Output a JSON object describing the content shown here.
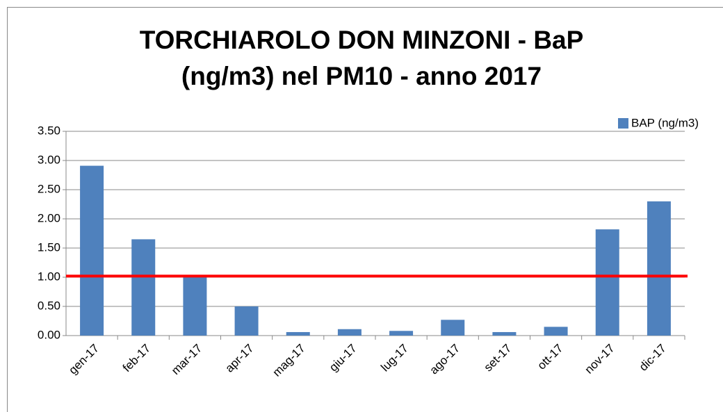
{
  "chart_data": {
    "type": "bar",
    "title": [
      "TORCHIAROLO DON MINZONI - BaP",
      "(ng/m3) nel  PM10 - anno 2017"
    ],
    "categories": [
      "gen-17",
      "feb-17",
      "mar-17",
      "apr-17",
      "mag-17",
      "giu-17",
      "lug-17",
      "ago-17",
      "set-17",
      "ott-17",
      "nov-17",
      "dic-17"
    ],
    "series": [
      {
        "name": "BAP (ng/m3)",
        "color": "#4f81bd",
        "values": [
          2.91,
          1.65,
          1.0,
          0.5,
          0.06,
          0.11,
          0.08,
          0.27,
          0.06,
          0.15,
          1.82,
          2.3
        ]
      }
    ],
    "reference_line": {
      "value": 1.02,
      "color": "#ff0000"
    },
    "ylim": [
      0,
      3.5
    ],
    "yticks": [
      {
        "value": 0,
        "label": "0.00"
      },
      {
        "value": 0.5,
        "label": "0.50"
      },
      {
        "value": 1,
        "label": "1.00"
      },
      {
        "value": 1.5,
        "label": "1.50"
      },
      {
        "value": 2,
        "label": "2.00"
      },
      {
        "value": 2.5,
        "label": "2.50"
      },
      {
        "value": 3,
        "label": "3.00"
      },
      {
        "value": 3.5,
        "label": "3.50"
      }
    ],
    "grid": true,
    "legend": "top-right"
  }
}
